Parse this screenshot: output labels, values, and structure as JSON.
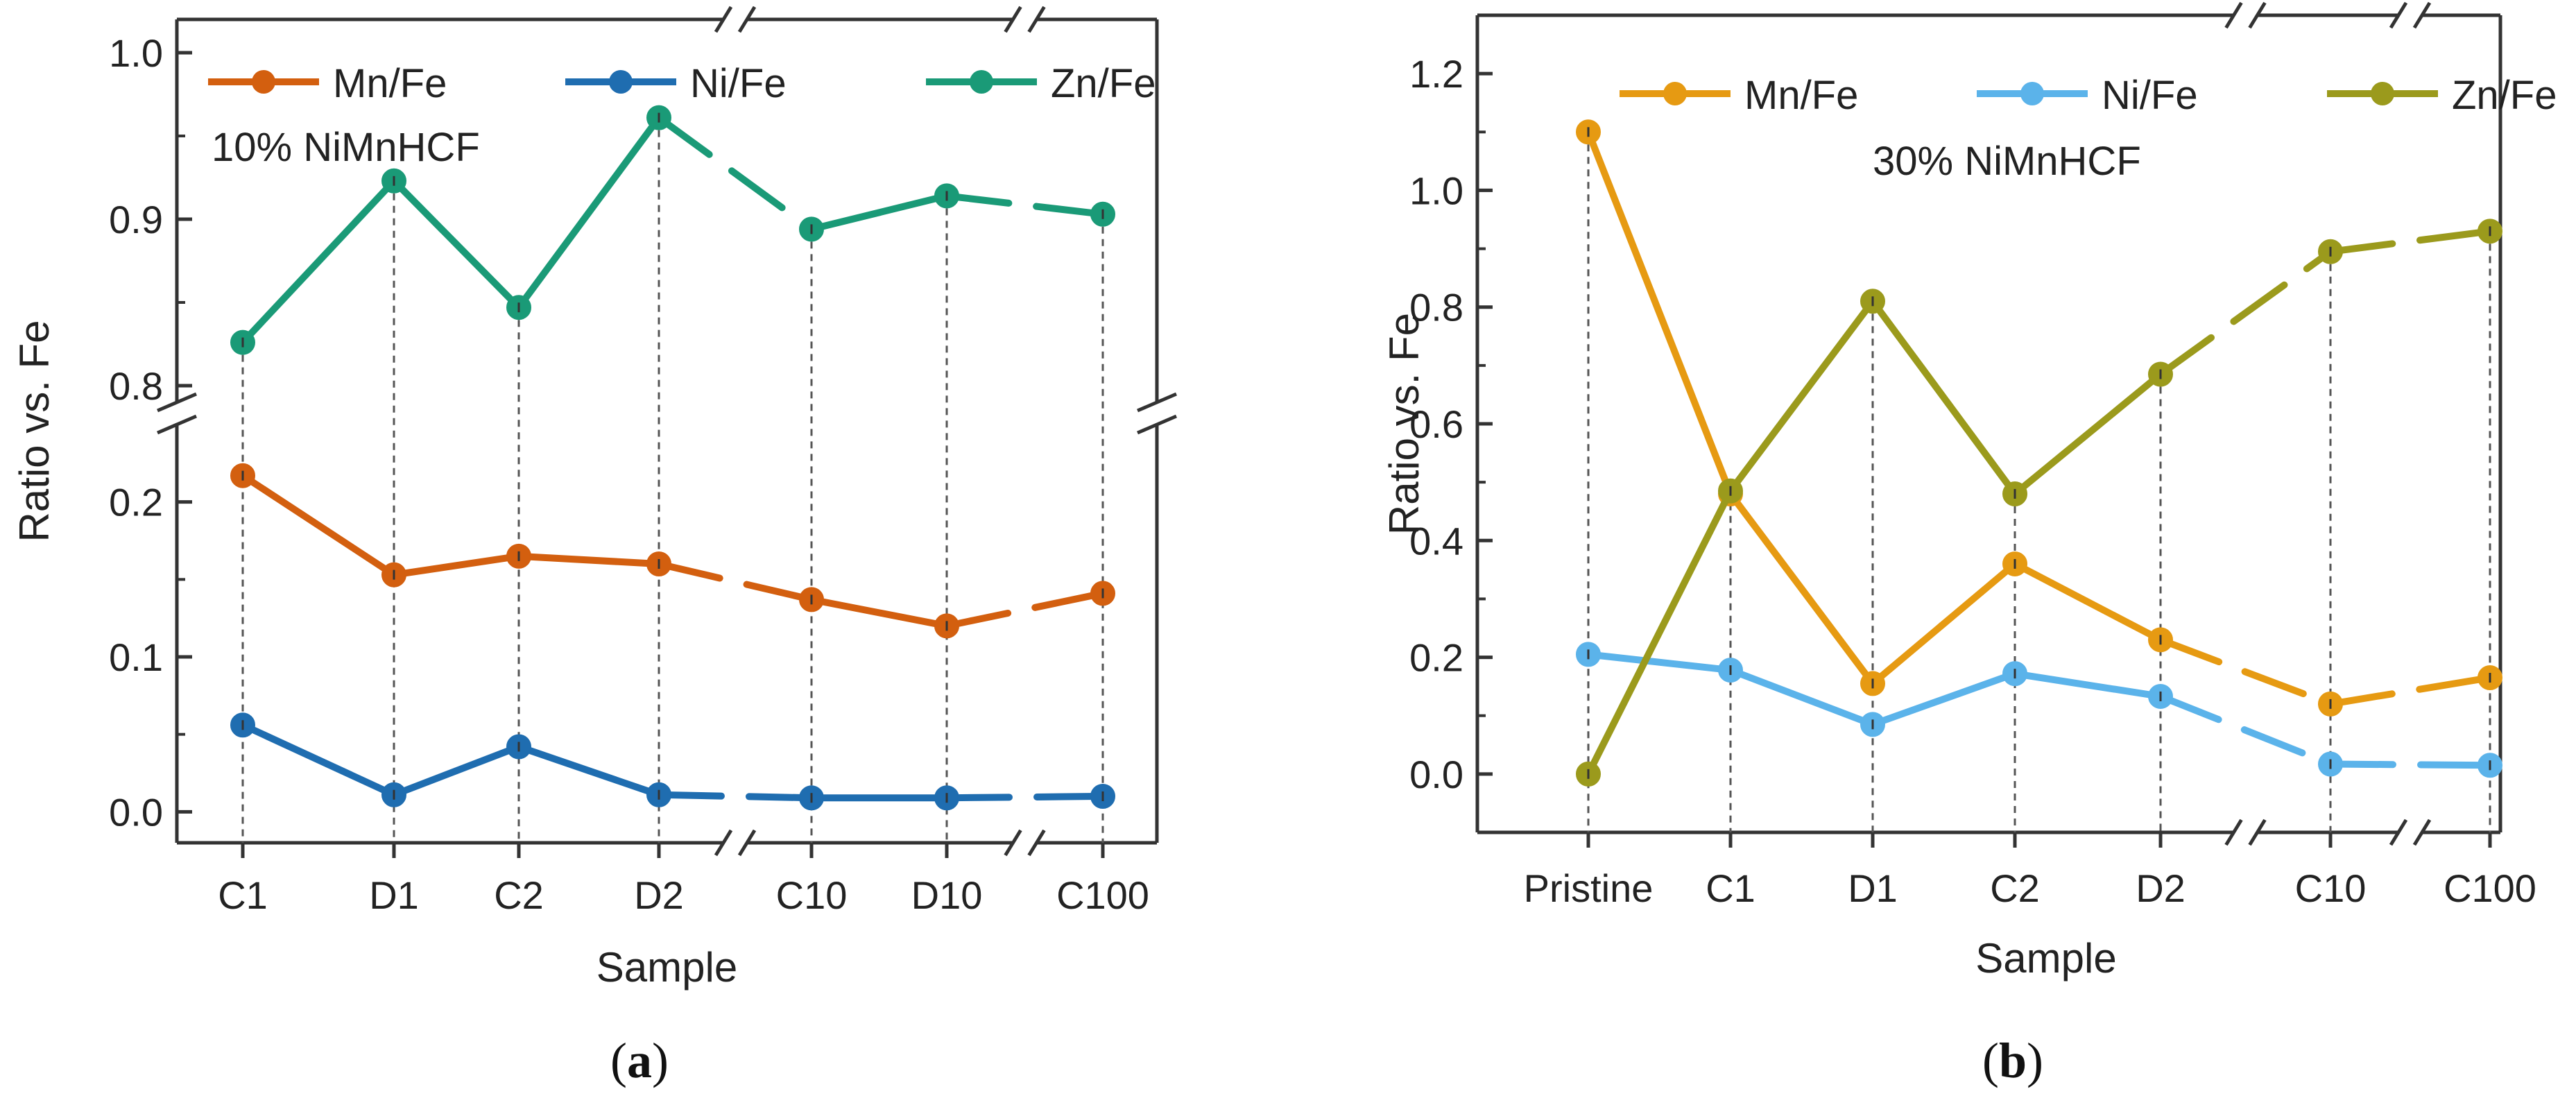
{
  "chart_data": [
    {
      "type": "line",
      "panel": "a",
      "annotation": "10% NiMnHCF",
      "xlabel": "Sample",
      "ylabel": "Ratio vs. Fe",
      "categories": [
        "C1",
        "D1",
        "C2",
        "D2",
        "C10",
        "D10",
        "C100"
      ],
      "y_axis_break": {
        "lower_range": [
          -0.02,
          0.25
        ],
        "upper_range": [
          0.79,
          1.02
        ]
      },
      "x_axis_breaks_after": [
        "D2",
        "D10"
      ],
      "lower_yticks": [
        "0.0",
        "0.1",
        "0.2"
      ],
      "upper_yticks": [
        "0.8",
        "0.9",
        "1.0"
      ],
      "series": [
        {
          "name": "Mn/Fe",
          "color": "#d35f0f",
          "values": [
            0.217,
            0.153,
            0.165,
            0.16,
            0.137,
            0.12,
            0.141
          ]
        },
        {
          "name": "Ni/Fe",
          "color": "#1f6db0",
          "values": [
            0.056,
            0.011,
            0.042,
            0.011,
            0.009,
            0.009,
            0.01
          ]
        },
        {
          "name": "Zn/Fe",
          "color": "#1a9a77",
          "values": [
            0.826,
            0.923,
            0.847,
            0.961,
            0.894,
            0.914,
            0.903
          ]
        }
      ]
    },
    {
      "type": "line",
      "panel": "b",
      "annotation": "30% NiMnHCF",
      "xlabel": "Sample",
      "ylabel": "Ratio vs. Fe",
      "categories": [
        "Pristine",
        "C1",
        "D1",
        "C2",
        "D2",
        "C10",
        "C100"
      ],
      "ylim": [
        -0.1,
        1.3
      ],
      "yticks": [
        "0.0",
        "0.2",
        "0.4",
        "0.6",
        "0.8",
        "1.0",
        "1.2"
      ],
      "x_axis_breaks_after": [
        "D2",
        "C10"
      ],
      "series": [
        {
          "name": "Mn/Fe",
          "color": "#e69a12",
          "values": [
            1.1,
            0.48,
            0.155,
            0.36,
            0.23,
            0.12,
            0.165
          ]
        },
        {
          "name": "Ni/Fe",
          "color": "#5bb3ea",
          "values": [
            0.205,
            0.178,
            0.085,
            0.172,
            0.133,
            0.017,
            0.015
          ]
        },
        {
          "name": "Zn/Fe",
          "color": "#9b9a1c",
          "values": [
            0.0,
            0.485,
            0.81,
            0.48,
            0.685,
            0.895,
            0.93
          ]
        }
      ]
    }
  ],
  "panel_labels": {
    "a": "a",
    "b": "b"
  }
}
